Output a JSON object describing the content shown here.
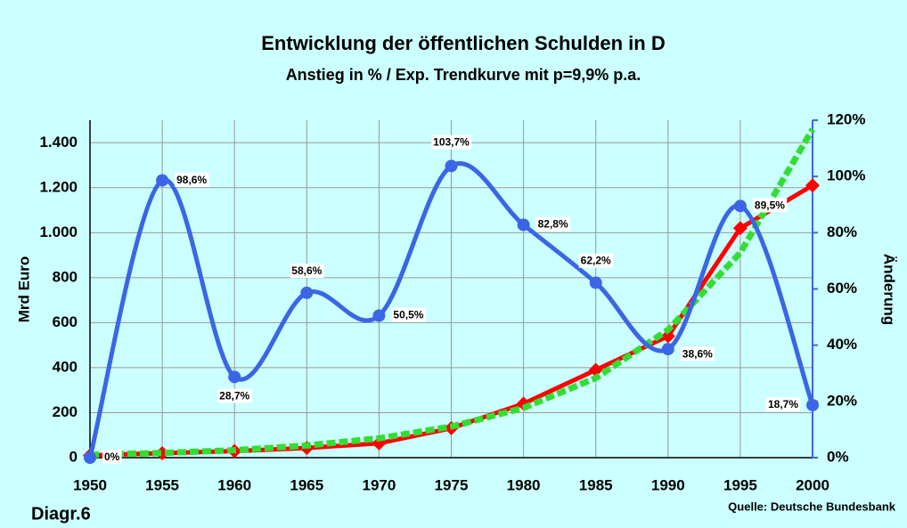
{
  "chart_data": {
    "type": "line",
    "title": "Entwicklung der öffentlichen Schulden in D",
    "subtitle": "Anstieg in % / Exp. Trendkurve mit p=9,9% p.a.",
    "y_label": "Mrd Euro",
    "y2_label": "Änderung",
    "annotations": [
      "Diagr.6",
      "Quelle: Deutsche Bundesbank"
    ],
    "x": [
      1950,
      1955,
      1960,
      1965,
      1970,
      1975,
      1980,
      1985,
      1990,
      1995,
      2000
    ],
    "xlim": [
      1950,
      2000
    ],
    "xticks": [
      1950,
      1955,
      1960,
      1965,
      1970,
      1975,
      1980,
      1985,
      1990,
      1995,
      2000
    ],
    "ylim": [
      0,
      1500
    ],
    "yticks": [
      0,
      200,
      400,
      600,
      800,
      {
        "value": 1000,
        "label": "1.000"
      },
      {
        "value": 1200,
        "label": "1.200"
      },
      {
        "value": 1400,
        "label": "1.400"
      }
    ],
    "y2lim": [
      0,
      120
    ],
    "y2ticks": [
      {
        "value": 0,
        "label": "0%"
      },
      {
        "value": 20,
        "label": "20%"
      },
      {
        "value": 40,
        "label": "40%"
      },
      {
        "value": 60,
        "label": "60%"
      },
      {
        "value": 80,
        "label": "80%"
      },
      {
        "value": 100,
        "label": "100%"
      },
      {
        "value": 120,
        "label": "120%"
      }
    ],
    "grid": true,
    "series": [
      {
        "name": "Schulden",
        "color": "#ff0000",
        "values": [
          10,
          20,
          29,
          43,
          64,
          131,
          240,
          390,
          540,
          1020,
          1210
        ]
      },
      {
        "name": "Trend",
        "color": "#33dd33",
        "style": "dashed",
        "values": [
          13,
          21,
          33,
          54,
          86,
          138,
          221,
          354,
          568,
          911,
          1460
        ]
      },
      {
        "name": "Änderung",
        "color": "#3a66e6",
        "axis": "y2",
        "smooth": true,
        "values": [
          0,
          98.6,
          28.7,
          58.6,
          50.5,
          103.7,
          82.8,
          62.2,
          38.6,
          89.5,
          18.7
        ],
        "value_labels": [
          "0%",
          "98,6%",
          "28,7%",
          "58,6%",
          "50,5%",
          "103,7%",
          "82,8%",
          "62,2%",
          "38,6%",
          "89,5%",
          "18,7%"
        ]
      }
    ]
  }
}
